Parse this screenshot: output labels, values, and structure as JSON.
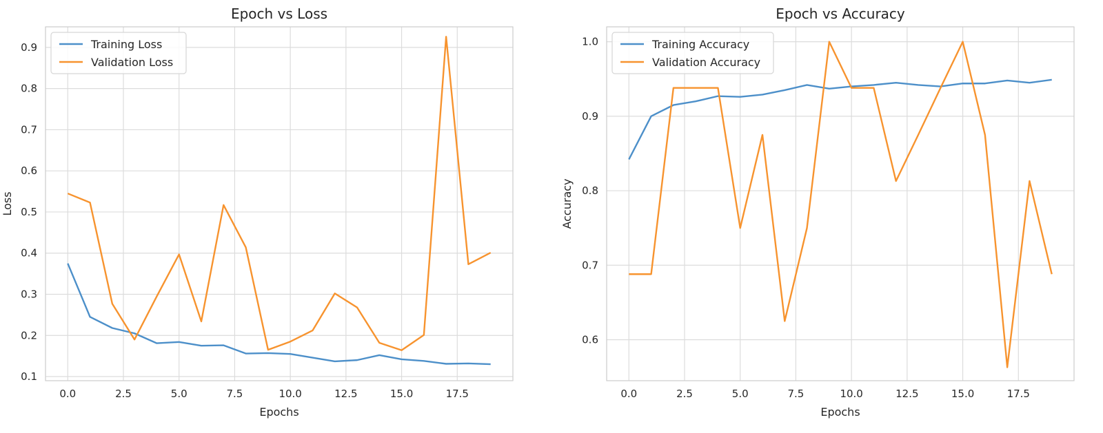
{
  "chart_data": [
    {
      "type": "line",
      "title": "Epoch vs Loss",
      "xlabel": "Epochs",
      "ylabel": "Loss",
      "xlim": [
        -1,
        20
      ],
      "ylim": [
        0.09,
        0.95
      ],
      "x_ticks": [
        0.0,
        2.5,
        5.0,
        7.5,
        10.0,
        12.5,
        15.0,
        17.5
      ],
      "x_tick_labels": [
        "0.0",
        "2.5",
        "5.0",
        "7.5",
        "10.0",
        "12.5",
        "15.0",
        "17.5"
      ],
      "y_ticks": [
        0.1,
        0.2,
        0.3,
        0.4,
        0.5,
        0.6,
        0.7,
        0.8,
        0.9
      ],
      "y_tick_labels": [
        "0.1",
        "0.2",
        "0.3",
        "0.4",
        "0.5",
        "0.6",
        "0.7",
        "0.8",
        "0.9"
      ],
      "grid": true,
      "legend": "top-left",
      "x": [
        0,
        1,
        2,
        3,
        4,
        5,
        6,
        7,
        8,
        9,
        10,
        11,
        12,
        13,
        14,
        15,
        16,
        17,
        18,
        19
      ],
      "series": [
        {
          "name": "Training Loss",
          "color": "#4c8fc9",
          "values": [
            0.375,
            0.245,
            0.218,
            0.205,
            0.181,
            0.184,
            0.175,
            0.176,
            0.156,
            0.157,
            0.155,
            0.146,
            0.137,
            0.14,
            0.152,
            0.142,
            0.138,
            0.131,
            0.132,
            0.13
          ]
        },
        {
          "name": "Validation Loss",
          "color": "#f7932e",
          "values": [
            0.545,
            0.523,
            0.277,
            0.19,
            0.295,
            0.397,
            0.234,
            0.517,
            0.414,
            0.165,
            0.185,
            0.212,
            0.302,
            0.268,
            0.182,
            0.164,
            0.201,
            0.926,
            0.373,
            0.401
          ]
        }
      ]
    },
    {
      "type": "line",
      "title": "Epoch vs Accuracy",
      "xlabel": "Epochs",
      "ylabel": "Accuracy",
      "xlim": [
        -1,
        20
      ],
      "ylim": [
        0.545,
        1.02
      ],
      "x_ticks": [
        0.0,
        2.5,
        5.0,
        7.5,
        10.0,
        12.5,
        15.0,
        17.5
      ],
      "x_tick_labels": [
        "0.0",
        "2.5",
        "5.0",
        "7.5",
        "10.0",
        "12.5",
        "15.0",
        "17.5"
      ],
      "y_ticks": [
        0.6,
        0.7,
        0.8,
        0.9,
        1.0
      ],
      "y_tick_labels": [
        "0.6",
        "0.7",
        "0.8",
        "0.9",
        "1.0"
      ],
      "grid": true,
      "legend": "top-left",
      "x": [
        0,
        1,
        2,
        3,
        4,
        5,
        6,
        7,
        8,
        9,
        10,
        11,
        12,
        13,
        14,
        15,
        16,
        17,
        18,
        19
      ],
      "series": [
        {
          "name": "Training Accuracy",
          "color": "#4c8fc9",
          "values": [
            0.842,
            0.9,
            0.915,
            0.92,
            0.927,
            0.926,
            0.929,
            0.935,
            0.942,
            0.937,
            0.94,
            0.942,
            0.945,
            0.942,
            0.94,
            0.944,
            0.944,
            0.948,
            0.945,
            0.949
          ]
        },
        {
          "name": "Validation Accuracy",
          "color": "#f7932e",
          "values": [
            0.688,
            0.688,
            0.938,
            0.938,
            0.938,
            0.75,
            0.875,
            0.625,
            0.75,
            1.0,
            0.938,
            0.938,
            0.813,
            0.875,
            0.938,
            1.0,
            0.875,
            0.563,
            0.813,
            0.688
          ]
        }
      ]
    }
  ]
}
